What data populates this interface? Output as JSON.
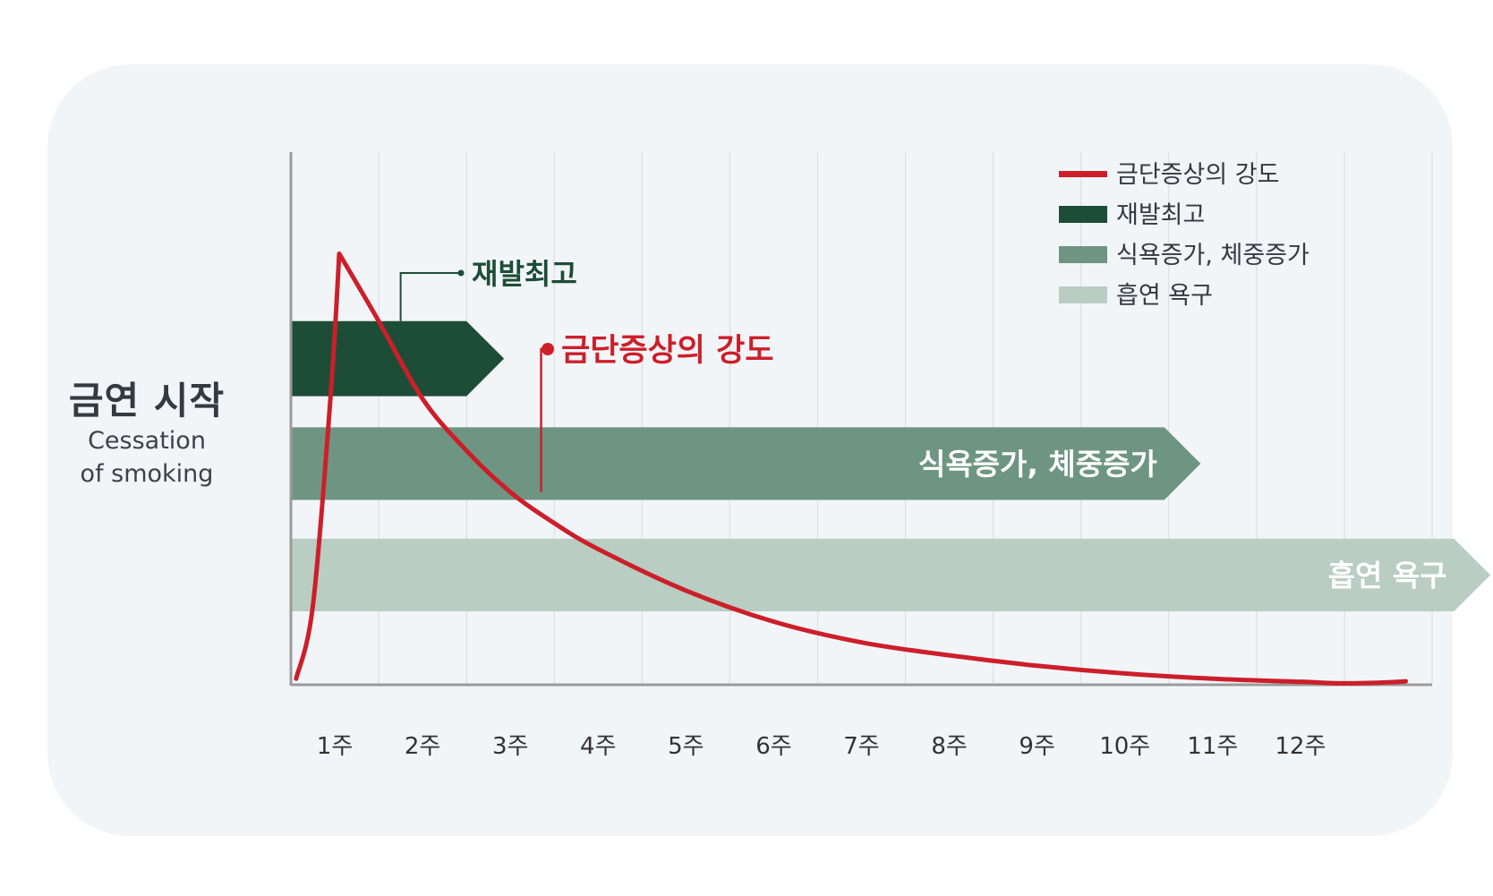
{
  "panel": {
    "background": "#f2f5f8"
  },
  "start": {
    "title": "금연 시작",
    "subtitle_line1": "Cessation",
    "subtitle_line2": "of smoking"
  },
  "colors": {
    "withdrawal": "#cc1f2a",
    "relapse": "#1d4d36",
    "appetite": "#6e9582",
    "craving": "#b9cdc3",
    "axis": "#9a9a9a",
    "grid": "#dcdfe2",
    "axis_text": "#333333"
  },
  "chart_data": {
    "type": "line",
    "categories": [
      "1주",
      "2주",
      "3주",
      "4주",
      "5주",
      "6주",
      "7주",
      "8주",
      "9주",
      "10주",
      "11주",
      "12주"
    ],
    "xlim": [
      0.5,
      13.5
    ],
    "ylim": [
      0,
      100
    ],
    "series": [
      {
        "name": "금단증상의 강도",
        "color": "#cc1f2a",
        "x": [
          0.56,
          0.75,
          0.95,
          1.05,
          1.5,
          2.0,
          2.5,
          3.0,
          3.5,
          4.0,
          5.0,
          6.0,
          7.0,
          8.0,
          9.0,
          10.0,
          11.0,
          12.0,
          12.5,
          13.0,
          13.2
        ],
        "y": [
          1,
          15,
          55,
          83,
          70,
          55,
          45,
          37,
          31,
          26,
          18,
          12,
          8,
          5.5,
          3.5,
          2,
          1,
          0.4,
          0.1,
          0.3,
          0.5
        ]
      }
    ],
    "bars": [
      {
        "name": "재발최고",
        "start": 0.5,
        "end": 2.5,
        "y_top": 70,
        "y_bottom": 55.5,
        "color": "#1d4d36",
        "label": ""
      },
      {
        "name": "식욕증가, 체중증가",
        "start": 0.5,
        "end": 10.45,
        "y_top": 49.5,
        "y_bottom": 35.5,
        "color": "#6e9582",
        "label": "식욕증가, 체중증가"
      },
      {
        "name": "흡연 욕구",
        "start": 0.5,
        "end": 13.75,
        "y_top": 28,
        "y_bottom": 14,
        "color": "#b9cdc3",
        "label": "흡연 욕구"
      }
    ],
    "annotations": [
      {
        "text": "재발최고",
        "color": "#1d4d36",
        "x": 1.75,
        "y": 70
      },
      {
        "text": "금단증상의 강도",
        "color": "#cc1f2a",
        "x": 3.35,
        "y": 37
      }
    ],
    "legend": {
      "position": "top-right",
      "items": [
        {
          "label": "금단증상의 강도",
          "color": "#cc1f2a",
          "kind": "line"
        },
        {
          "label": "재발최고",
          "color": "#1d4d36",
          "kind": "box"
        },
        {
          "label": "식욕증가, 체중증가",
          "color": "#6e9582",
          "kind": "box"
        },
        {
          "label": "흡연 욕구",
          "color": "#b9cdc3",
          "kind": "box"
        }
      ]
    },
    "grid": true
  }
}
